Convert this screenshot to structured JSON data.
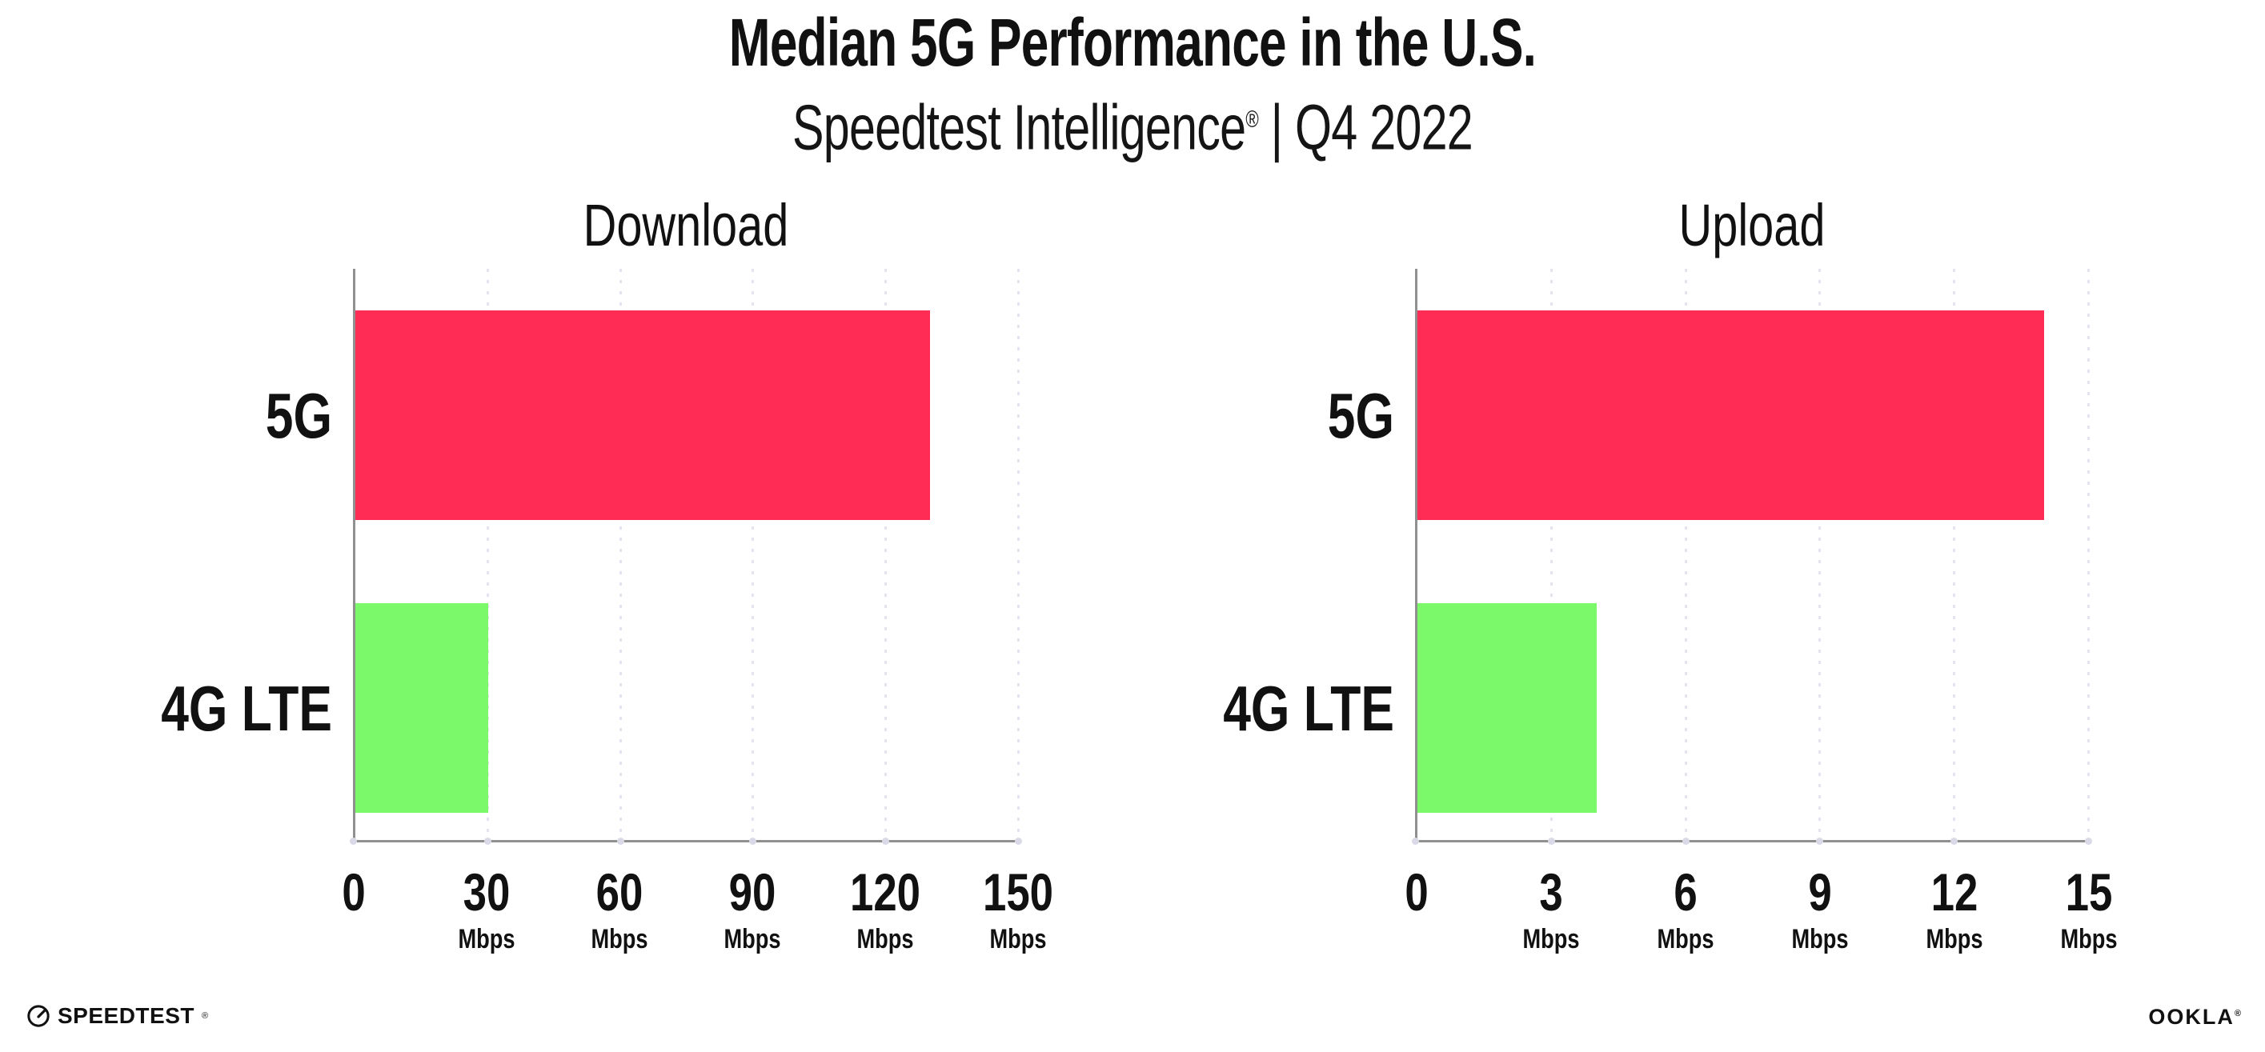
{
  "header": {
    "title": "Median 5G Performance in the U.S.",
    "subtitle_brand": "Speedtest Intelligence",
    "subtitle_reg": "®",
    "subtitle_rest": " | Q4 2022"
  },
  "chart_data": [
    {
      "type": "bar",
      "orientation": "horizontal",
      "title": "Download",
      "categories": [
        "5G",
        "4G LTE"
      ],
      "values": [
        130,
        30
      ],
      "unit": "Mbps",
      "xlim": [
        0,
        150
      ],
      "xticks": [
        0,
        30,
        60,
        90,
        120,
        150
      ],
      "tick_labels": [
        {
          "num": "0",
          "unit": ""
        },
        {
          "num": "30",
          "unit": "Mbps"
        },
        {
          "num": "60",
          "unit": "Mbps"
        },
        {
          "num": "90",
          "unit": "Mbps"
        },
        {
          "num": "120",
          "unit": "Mbps"
        },
        {
          "num": "150",
          "unit": "Mbps"
        }
      ],
      "bar_colors": [
        "#FF2D55",
        "#7BF96B"
      ],
      "grid": "dotted vertical gridlines at each tick",
      "legend": "none"
    },
    {
      "type": "bar",
      "orientation": "horizontal",
      "title": "Upload",
      "categories": [
        "5G",
        "4G LTE"
      ],
      "values": [
        14,
        4
      ],
      "unit": "Mbps",
      "xlim": [
        0,
        15
      ],
      "xticks": [
        0,
        3,
        6,
        9,
        12,
        15
      ],
      "tick_labels": [
        {
          "num": "0",
          "unit": ""
        },
        {
          "num": "3",
          "unit": "Mbps"
        },
        {
          "num": "6",
          "unit": "Mbps"
        },
        {
          "num": "9",
          "unit": "Mbps"
        },
        {
          "num": "12",
          "unit": "Mbps"
        },
        {
          "num": "15",
          "unit": "Mbps"
        }
      ],
      "bar_colors": [
        "#FF2D55",
        "#7BF96B"
      ],
      "grid": "dotted vertical gridlines at each tick",
      "legend": "none"
    }
  ],
  "footer": {
    "speedtest_label": "SPEEDTEST",
    "speedtest_mark": "®",
    "ookla_label": "OOKLA",
    "ookla_mark": "®"
  },
  "colors": {
    "bar_5g": "#FF2D55",
    "bar_4g_lte": "#7BF96B",
    "axis": "#909090",
    "gridline": "#E4E4F0",
    "text": "#111111",
    "background": "#FFFFFF"
  }
}
